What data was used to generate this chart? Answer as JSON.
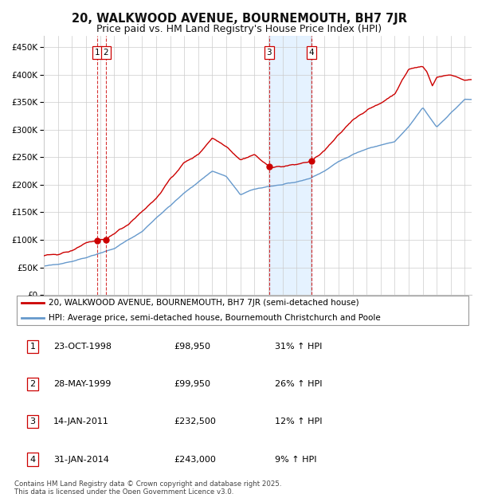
{
  "title": "20, WALKWOOD AVENUE, BOURNEMOUTH, BH7 7JR",
  "subtitle": "Price paid vs. HM Land Registry's House Price Index (HPI)",
  "legend_line1": "20, WALKWOOD AVENUE, BOURNEMOUTH, BH7 7JR (semi-detached house)",
  "legend_line2": "HPI: Average price, semi-detached house, Bournemouth Christchurch and Poole",
  "footer": "Contains HM Land Registry data © Crown copyright and database right 2025.\nThis data is licensed under the Open Government Licence v3.0.",
  "sale_dates_num": [
    1998.81,
    1999.41,
    2011.04,
    2014.08
  ],
  "sale_prices": [
    98950,
    99950,
    232500,
    243000
  ],
  "sale_labels": [
    "1",
    "2",
    "3",
    "4"
  ],
  "sale_table": [
    [
      "1",
      "23-OCT-1998",
      "£98,950",
      "31% ↑ HPI"
    ],
    [
      "2",
      "28-MAY-1999",
      "£99,950",
      "26% ↑ HPI"
    ],
    [
      "3",
      "14-JAN-2011",
      "£232,500",
      "12% ↑ HPI"
    ],
    [
      "4",
      "31-JAN-2014",
      "£243,000",
      "9% ↑ HPI"
    ]
  ],
  "shade_start": 2011.04,
  "shade_end": 2014.08,
  "ylim": [
    0,
    470000
  ],
  "xlim_start": 1995.0,
  "xlim_end": 2025.5,
  "red_color": "#cc0000",
  "blue_color": "#6699cc",
  "background_color": "#ffffff",
  "grid_color": "#cccccc"
}
